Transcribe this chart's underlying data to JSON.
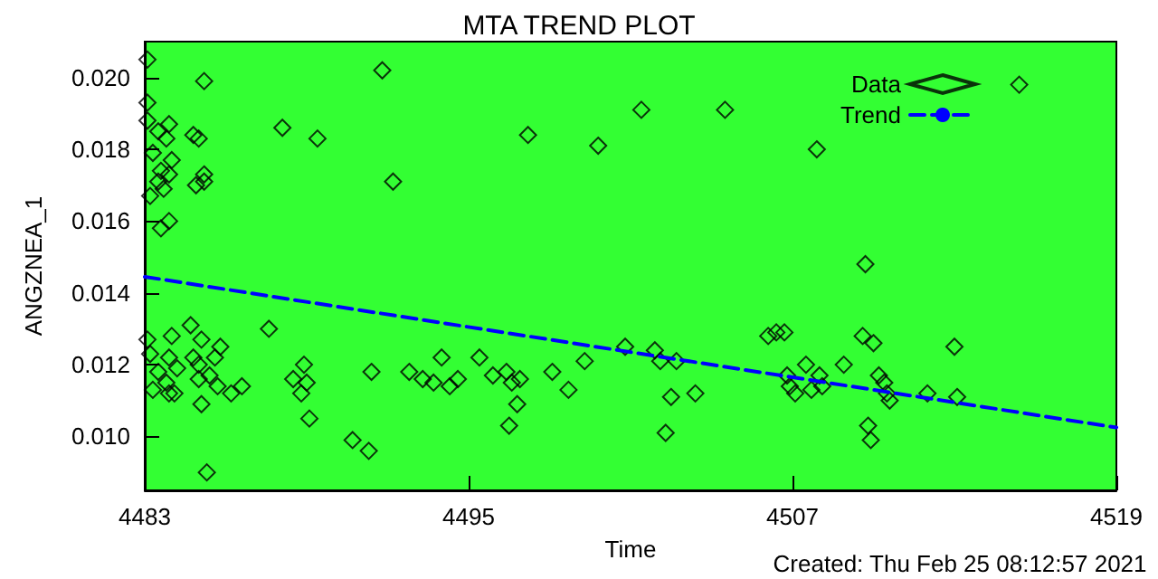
{
  "chart_data": {
    "type": "scatter",
    "title": "MTA TREND PLOT",
    "xlabel": "Time",
    "ylabel": "ANGZNEA_1",
    "annotations": [
      "Created: Thu Feb 25 08:12:57 2021"
    ],
    "xlim": [
      4483,
      4519
    ],
    "xticks": [
      4483,
      4495,
      4507,
      4519
    ],
    "ylim": [
      0.0085,
      0.021
    ],
    "yticks": [
      {
        "value": 0.01,
        "label": "0.010"
      },
      0.012,
      0.014,
      0.016,
      0.018,
      {
        "value": 0.02,
        "label": "0.020"
      }
    ],
    "legend": "top right",
    "series": [
      {
        "name": "Data",
        "marker": "diamond",
        "color": "#000000",
        "x": [
          4483.1,
          4485.2,
          4491.8,
          4483.1,
          4483.1,
          4483.5,
          4483.9,
          4483.8,
          4484.8,
          4485.0,
          4488.1,
          4489.4,
          4497.2,
          4499.8,
          4483.3,
          4484.0,
          4483.6,
          4483.9,
          4483.5,
          4483.7,
          4483.2,
          4485.2,
          4484.9,
          4485.2,
          4492.2,
          4483.9,
          4483.6,
          4483.1,
          4484.0,
          4484.7,
          4487.6,
          4485.1,
          4483.2,
          4483.9,
          4484.2,
          4483.5,
          4483.8,
          4483.3,
          4483.9,
          4484.1,
          4484.8,
          4485.0,
          4485.6,
          4485.8,
          4485.4,
          4485.0,
          4485.7,
          4486.2,
          4486.6,
          4485.1,
          4485.3,
          4488.9,
          4488.5,
          4489.0,
          4488.8,
          4489.1,
          4490.7,
          4491.3,
          4491.4,
          4492.8,
          4493.3,
          4493.7,
          4494.0,
          4494.3,
          4494.6,
          4495.4,
          4495.9,
          4496.4,
          4496.6,
          4496.9,
          4496.8,
          4496.5,
          4498.1,
          4498.7,
          4499.3,
          4500.8,
          4501.4,
          4504.5,
          4507.9,
          4515.4,
          4509.7,
          4501.9,
          4502.1,
          4502.7,
          4502.5,
          4503.4,
          4502.3,
          4506.1,
          4506.4,
          4506.7,
          4506.8,
          4506.9,
          4507.1,
          4507.5,
          4507.7,
          4508.0,
          4508.1,
          4508.9,
          4509.6,
          4510.0,
          4509.8,
          4509.9,
          4510.2,
          4510.4,
          4510.5,
          4510.6,
          4512.0,
          4513.0,
          4513.1
        ],
        "values": [
          0.0205,
          0.0199,
          0.0202,
          0.0193,
          0.0188,
          0.0185,
          0.0187,
          0.0183,
          0.0184,
          0.0183,
          0.0186,
          0.0183,
          0.0184,
          0.0181,
          0.0179,
          0.0177,
          0.0174,
          0.0173,
          0.0171,
          0.0169,
          0.0167,
          0.0173,
          0.017,
          0.0171,
          0.0171,
          0.016,
          0.0158,
          0.0127,
          0.0128,
          0.0131,
          0.013,
          0.0127,
          0.0123,
          0.0122,
          0.0119,
          0.0118,
          0.0115,
          0.0113,
          0.0112,
          0.0112,
          0.0122,
          0.012,
          0.0122,
          0.0125,
          0.0117,
          0.0116,
          0.0114,
          0.0112,
          0.0114,
          0.0109,
          0.009,
          0.012,
          0.0116,
          0.0115,
          0.0112,
          0.0105,
          0.0099,
          0.0096,
          0.0118,
          0.0118,
          0.0116,
          0.0115,
          0.0122,
          0.0114,
          0.0116,
          0.0122,
          0.0117,
          0.0118,
          0.0115,
          0.0116,
          0.0109,
          0.0103,
          0.0118,
          0.0113,
          0.0121,
          0.0125,
          0.0191,
          0.0191,
          0.018,
          0.0198,
          0.0148,
          0.0124,
          0.0121,
          0.0121,
          0.0111,
          0.0112,
          0.0101,
          0.0128,
          0.0129,
          0.0129,
          0.0117,
          0.0114,
          0.0112,
          0.012,
          0.0113,
          0.0117,
          0.0114,
          0.012,
          0.0128,
          0.0126,
          0.0103,
          0.0099,
          0.0117,
          0.0115,
          0.0112,
          0.011,
          0.0112,
          0.0125,
          0.0111
        ]
      },
      {
        "name": "Trend",
        "type": "line",
        "line_style": "dashed",
        "color": "#0000ff",
        "x": [
          4483,
          4519
        ],
        "values": [
          0.01445,
          0.01025
        ]
      }
    ]
  }
}
